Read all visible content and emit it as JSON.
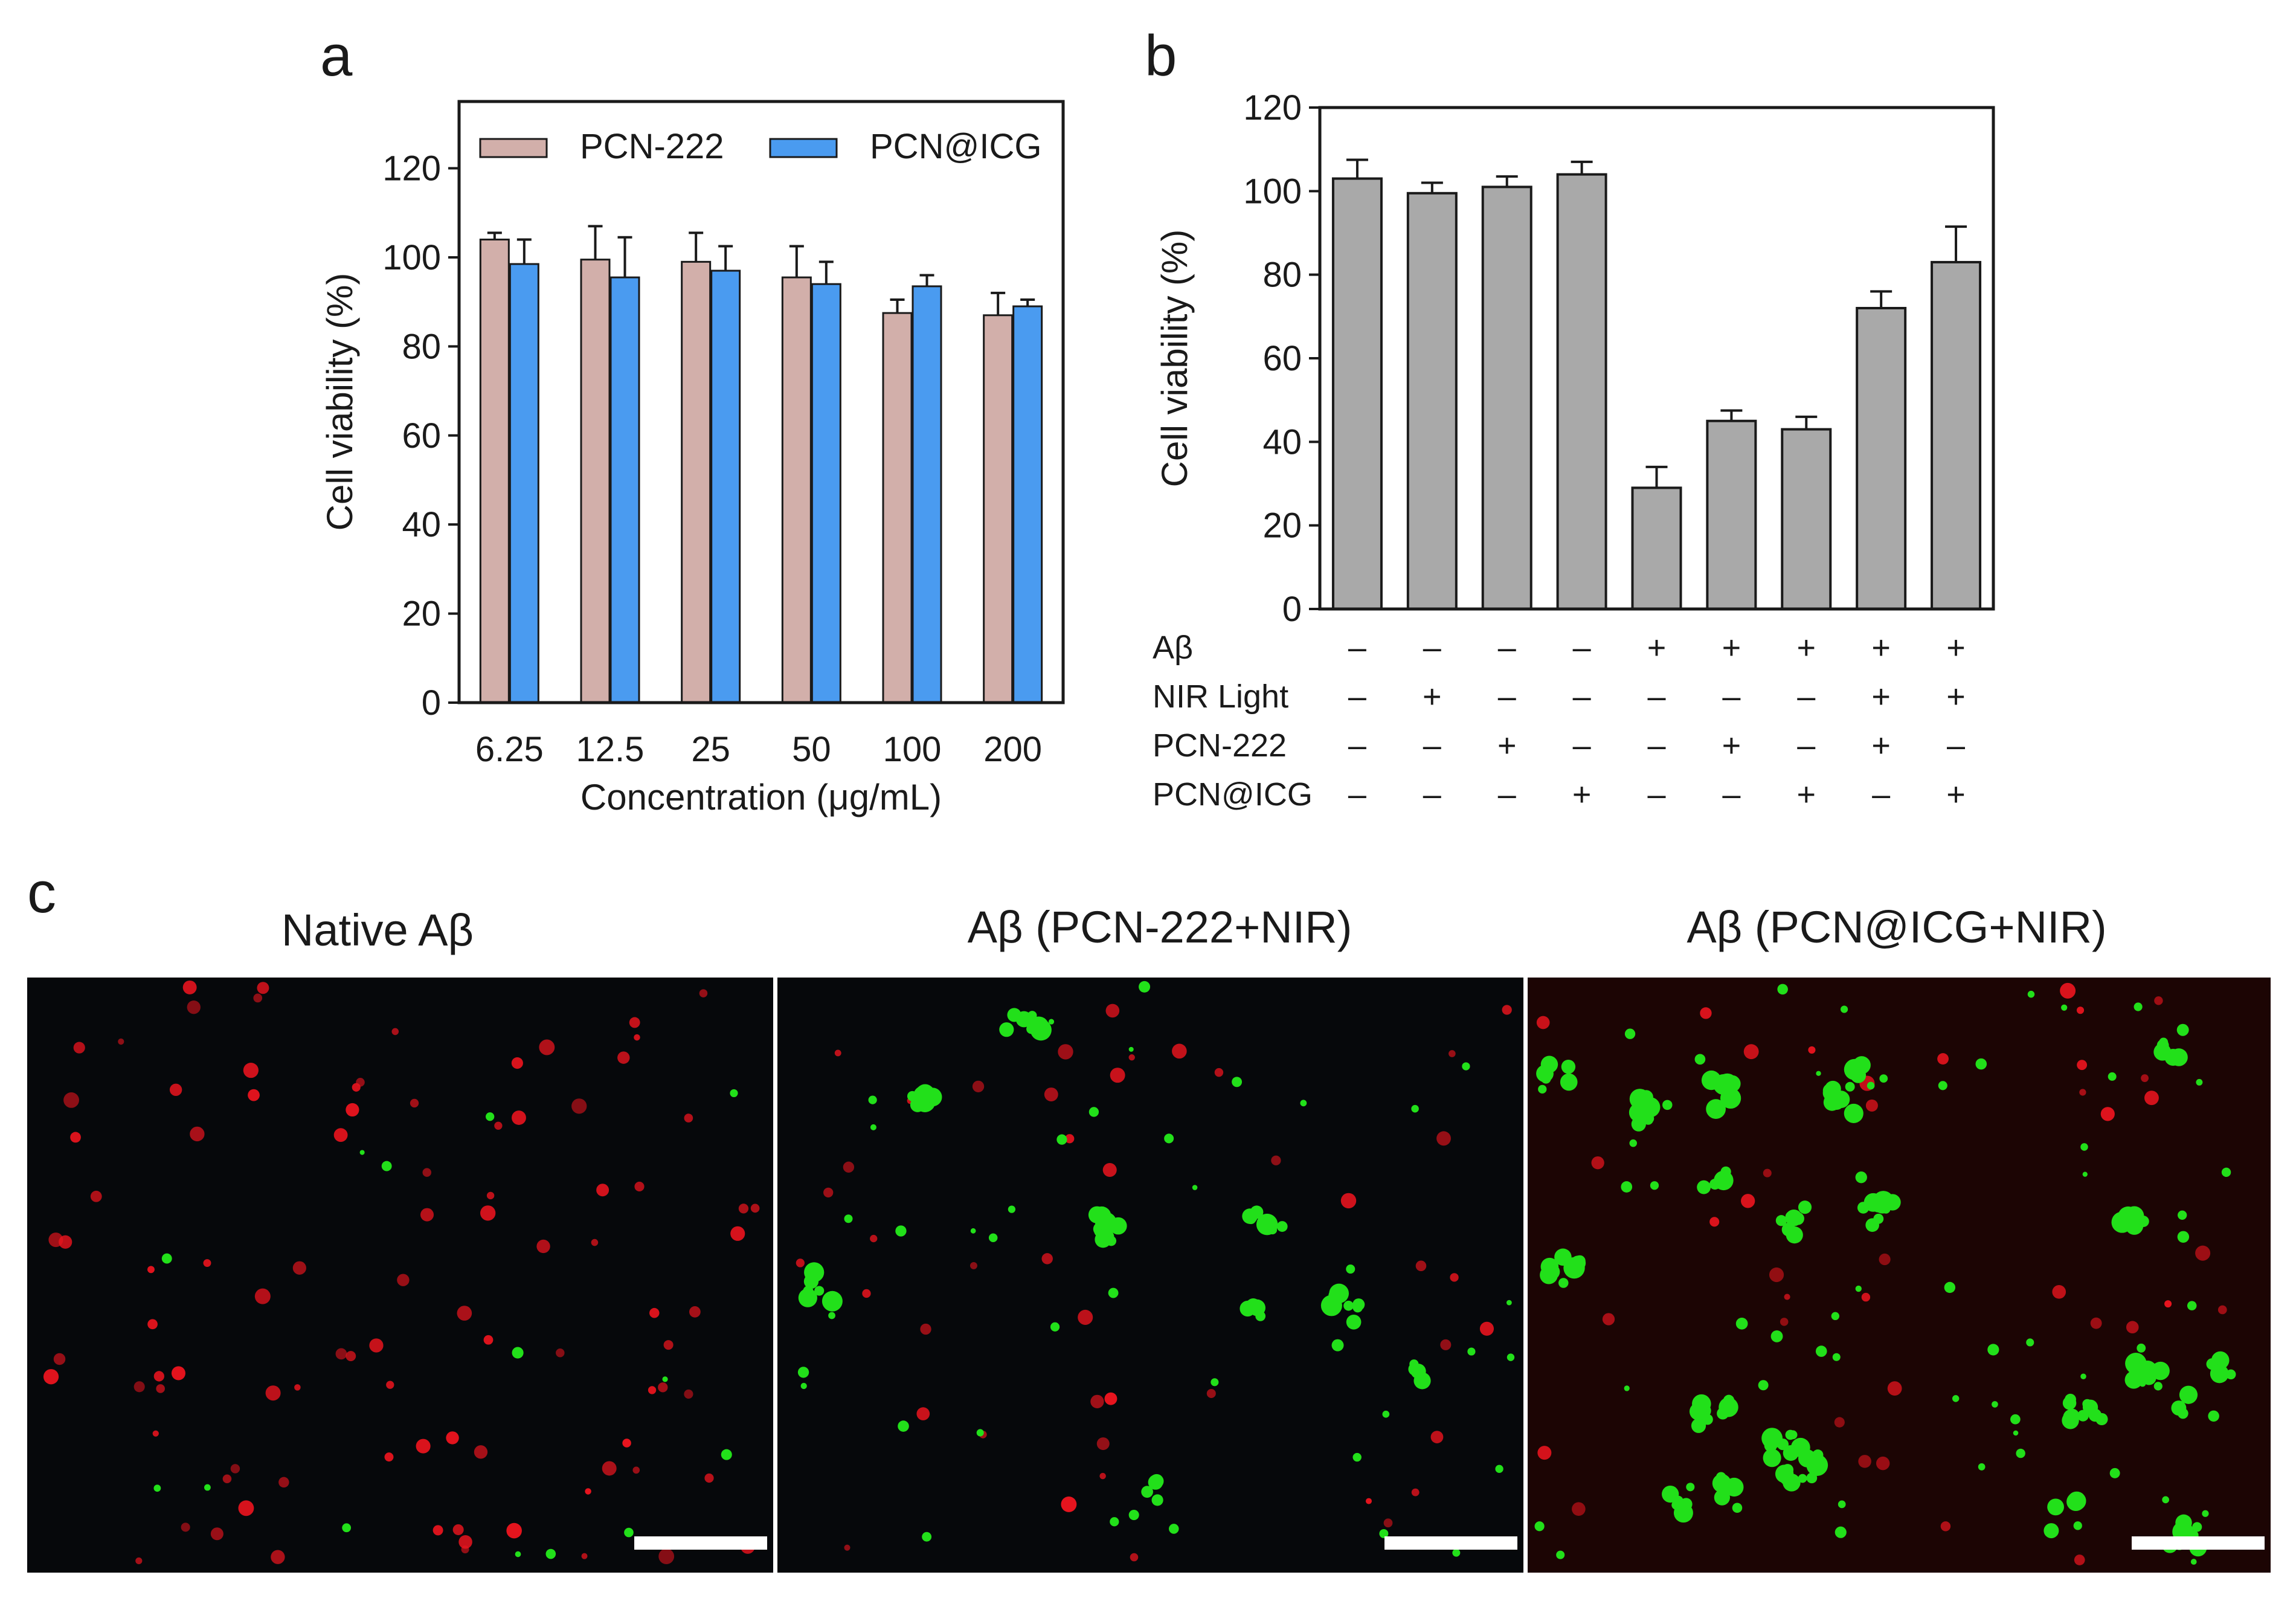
{
  "panel_letters": {
    "a": "a",
    "b": "b",
    "c": "c"
  },
  "chart_data": [
    {
      "type": "bar",
      "panel": "a",
      "categories": [
        "6.25",
        "12.5",
        "25",
        "50",
        "100",
        "200"
      ],
      "series": [
        {
          "name": "PCN-222",
          "values": [
            104,
            99.5,
            99,
            95.5,
            87.5,
            87
          ],
          "errors": [
            1.5,
            7.5,
            6.5,
            7,
            3,
            5
          ],
          "color": "#d2afaa"
        },
        {
          "name": "PCN@ICG",
          "values": [
            98.5,
            95.5,
            97,
            94,
            93.5,
            89
          ],
          "errors": [
            5.5,
            9,
            5.5,
            5,
            2.5,
            1.5
          ],
          "color": "#4a9bf0"
        }
      ],
      "xlabel": "Concentration (μg/mL)",
      "ylabel": "Cell viability (%)",
      "ylim": [
        0,
        135
      ],
      "yticks": [
        "0",
        "20",
        "40",
        "60",
        "80",
        "100",
        "120"
      ],
      "legend": "top",
      "grid": false
    },
    {
      "type": "bar",
      "panel": "b",
      "values": [
        103,
        99.5,
        101,
        104,
        29,
        45,
        43,
        72,
        83
      ],
      "errors": [
        4.5,
        2.5,
        2.5,
        3,
        5,
        2.5,
        3,
        4,
        8.5
      ],
      "bar_color": "#a9a9a9",
      "ylabel": "Cell viability (%)",
      "ylim": [
        0,
        120
      ],
      "yticks": [
        "0",
        "20",
        "40",
        "60",
        "80",
        "100",
        "120"
      ],
      "grid": false,
      "conditions": [
        {
          "label": "Aβ",
          "signs": [
            "–",
            "–",
            "–",
            "–",
            "+",
            "+",
            "+",
            "+",
            "+"
          ]
        },
        {
          "label": "NIR Light",
          "signs": [
            "–",
            "+",
            "–",
            "–",
            "–",
            "–",
            "–",
            "+",
            "+"
          ]
        },
        {
          "label": "PCN-222",
          "signs": [
            "–",
            "–",
            "+",
            "–",
            "–",
            "+",
            "–",
            "+",
            "–"
          ]
        },
        {
          "label": "PCN@ICG",
          "signs": [
            "–",
            "–",
            "–",
            "+",
            "–",
            "–",
            "+",
            "–",
            "+"
          ]
        }
      ]
    }
  ],
  "micrographs": [
    {
      "title": "Native Aβ"
    },
    {
      "title": "Aβ (PCN-222+NIR)"
    },
    {
      "title": "Aβ (PCN@ICG+NIR)"
    }
  ],
  "colors": {
    "background": "#ffffff",
    "micrograph_bg": "#06080b",
    "red_dot": "#e8141e",
    "green_dot": "#22e01a",
    "scale_bar": "#ffffff"
  }
}
